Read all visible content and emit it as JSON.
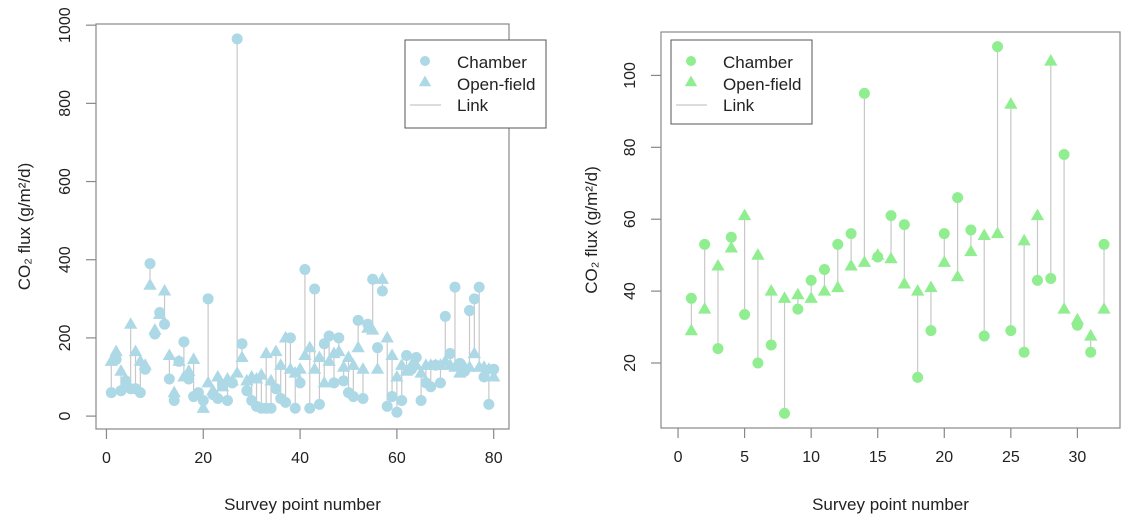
{
  "chart_data": [
    {
      "type": "scatter",
      "title": "",
      "xlabel": "Survey point number",
      "ylabel": "CO₂ flux (g/m²/d)",
      "xlim": [
        -2.16,
        83.16
      ],
      "ylim": [
        -33,
        1003
      ],
      "xticks": [
        0,
        20,
        40,
        60,
        80
      ],
      "yticks": [
        0,
        200,
        400,
        600,
        800,
        1000
      ],
      "grid": false,
      "legend_position": "top-right",
      "legend": [
        "Chamber",
        "Open-field",
        "Link"
      ],
      "color": "#add8e6",
      "link_color": "#c8c8c8",
      "x": [
        1,
        2,
        3,
        4,
        5,
        6,
        7,
        8,
        9,
        10,
        11,
        12,
        13,
        14,
        15,
        16,
        17,
        18,
        19,
        20,
        21,
        22,
        23,
        24,
        25,
        26,
        27,
        28,
        29,
        30,
        31,
        32,
        33,
        34,
        35,
        36,
        37,
        38,
        39,
        40,
        41,
        42,
        43,
        44,
        45,
        46,
        47,
        48,
        49,
        50,
        51,
        52,
        53,
        54,
        55,
        56,
        57,
        58,
        59,
        60,
        61,
        62,
        63,
        64,
        65,
        66,
        67,
        68,
        69,
        70,
        71,
        72,
        73,
        74,
        75,
        76,
        77,
        78,
        79,
        80
      ],
      "series": [
        {
          "name": "Chamber",
          "marker": "circle",
          "values": [
            60,
            145,
            65,
            90,
            70,
            70,
            60,
            120,
            390,
            210,
            265,
            235,
            95,
            40,
            140,
            190,
            95,
            50,
            60,
            40,
            300,
            55,
            45,
            80,
            40,
            85,
            965,
            185,
            65,
            40,
            25,
            20,
            20,
            20,
            70,
            45,
            35,
            200,
            20,
            85,
            375,
            20,
            325,
            30,
            185,
            205,
            85,
            200,
            90,
            60,
            50,
            245,
            45,
            235,
            350,
            175,
            320,
            25,
            50,
            10,
            40,
            155,
            120,
            150,
            40,
            85,
            75,
            130,
            85,
            255,
            160,
            330,
            135,
            115,
            270,
            300,
            330,
            100,
            30,
            120
          ]
        },
        {
          "name": "Open-field",
          "marker": "triangle",
          "values": [
            140,
            165,
            115,
            85,
            235,
            165,
            140,
            130,
            335,
            220,
            260,
            320,
            155,
            60,
            140,
            100,
            115,
            145,
            55,
            20,
            85,
            65,
            100,
            75,
            95,
            90,
            110,
            150,
            90,
            100,
            95,
            105,
            160,
            90,
            165,
            130,
            200,
            120,
            110,
            120,
            155,
            175,
            120,
            150,
            85,
            140,
            160,
            165,
            125,
            150,
            130,
            175,
            120,
            225,
            220,
            120,
            350,
            200,
            155,
            100,
            130,
            115,
            130,
            130,
            110,
            130,
            130,
            130,
            130,
            140,
            130,
            125,
            110,
            125,
            125,
            160,
            125,
            125,
            120,
            100
          ]
        }
      ]
    },
    {
      "type": "scatter",
      "title": "",
      "xlabel": "Survey point number",
      "ylabel": "CO₂ flux (g/m²/d)",
      "xlim": [
        -1.28,
        33.2
      ],
      "ylim": [
        1.92,
        112.08
      ],
      "xticks": [
        0,
        5,
        10,
        15,
        20,
        25,
        30
      ],
      "yticks": [
        20,
        40,
        60,
        80,
        100
      ],
      "grid": false,
      "legend_position": "top-left",
      "legend": [
        "Chamber",
        "Open-field",
        "Link"
      ],
      "color": "#90ee90",
      "link_color": "#c8c8c8",
      "x": [
        1,
        2,
        3,
        4,
        5,
        6,
        7,
        8,
        9,
        10,
        11,
        12,
        13,
        14,
        15,
        16,
        17,
        18,
        19,
        20,
        21,
        22,
        23,
        24,
        25,
        26,
        27,
        28,
        29,
        30,
        31,
        32
      ],
      "series": [
        {
          "name": "Chamber",
          "marker": "circle",
          "values": [
            38,
            53,
            24,
            55,
            33.5,
            20,
            25,
            6,
            35,
            43,
            46,
            53,
            56,
            95,
            49.5,
            61,
            58.5,
            16,
            29,
            56,
            66,
            57,
            27.5,
            108,
            29,
            23,
            43,
            43.5,
            78,
            30.5,
            23,
            53
          ]
        },
        {
          "name": "Open-field",
          "marker": "triangle",
          "values": [
            29,
            35,
            47,
            52,
            61,
            50,
            40,
            38,
            39,
            38,
            40,
            41,
            47,
            48,
            50,
            49,
            42,
            40,
            41,
            48,
            44,
            51,
            55.5,
            56,
            92,
            54,
            61,
            104,
            35,
            32,
            27.5,
            35
          ]
        }
      ]
    }
  ]
}
